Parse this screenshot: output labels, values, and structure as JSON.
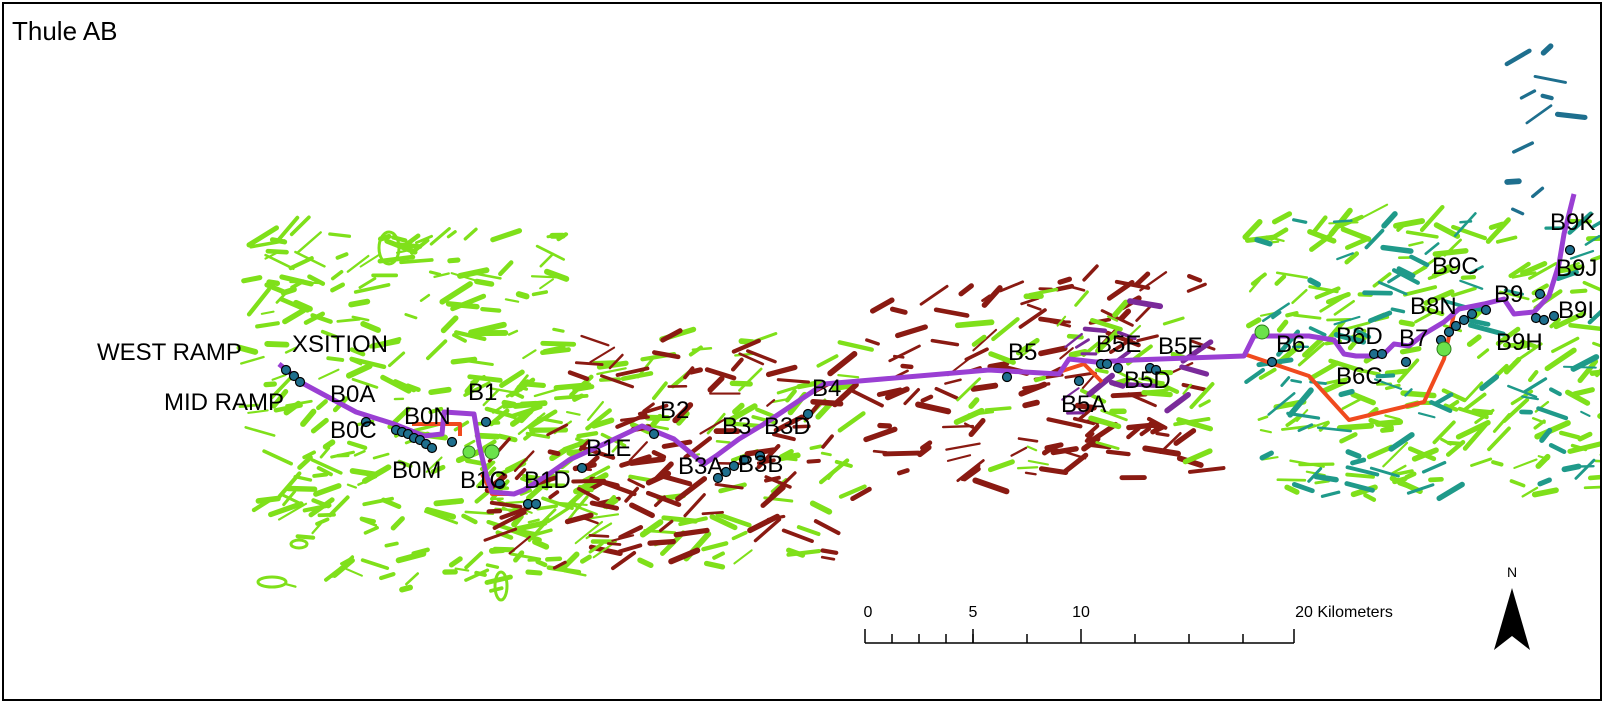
{
  "map": {
    "title": "Thule AB",
    "colors": {
      "route": "#9a3fd3",
      "alt_route": "#f04a1e",
      "terrain_green": "#7fe01a",
      "terrain_red": "#8a1a12",
      "terrain_teal": "#1f9a8a",
      "terrain_purple": "#7a2a9a",
      "station_fill": "#1e6f8e",
      "marker_green": "#6be24a"
    },
    "labels": {
      "west_ramp": "WEST RAMP",
      "xsition": "XSITION",
      "mid_ramp": "MID RAMP",
      "b0a": "B0A",
      "b0c": "B0C",
      "b0n": "B0N",
      "b0m": "B0M",
      "b1": "B1",
      "b1c": "B1C",
      "b1d": "B1D",
      "b1e": "B1E",
      "b2": "B2",
      "b3": "B3",
      "b3a": "B3A",
      "b3b": "B3B",
      "b3d": "B3D",
      "b4": "B4",
      "b5": "B5",
      "b5a": "B5A",
      "b5e": "B5E",
      "b5f": "B5F",
      "b5d": "B5D",
      "b6": "B6",
      "b6d": "B6D",
      "b6c": "B6C",
      "b7": "B7",
      "b8n": "B8N",
      "b9c": "B9C",
      "b9": "B9",
      "b9h": "B9H",
      "b9i": "B9I",
      "b9j": "B9J",
      "b9k": "B9K"
    },
    "scale_bar": {
      "ticks": [
        "0",
        "5",
        "10",
        "20 Kilometers"
      ]
    },
    "north_arrow": {
      "label": "N",
      "icon": "north-arrow-icon"
    }
  }
}
